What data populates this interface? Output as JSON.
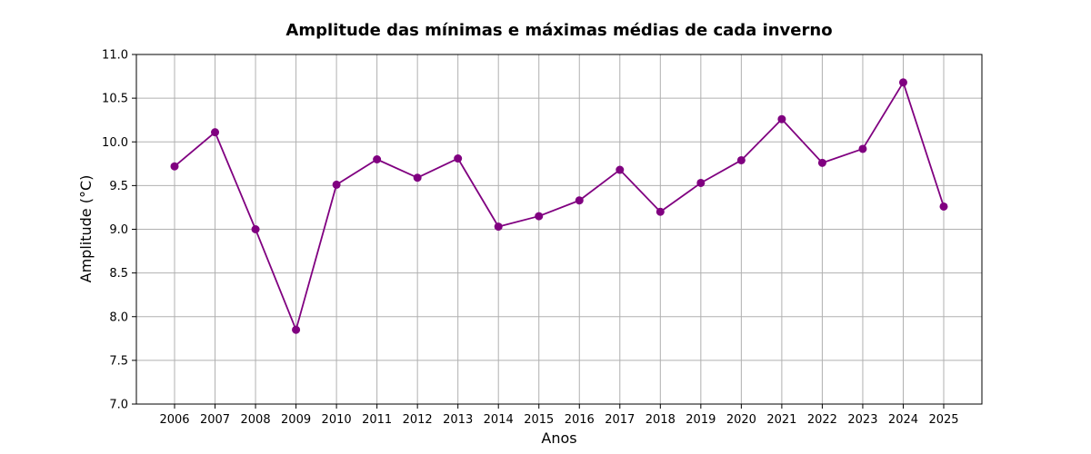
{
  "chart_data": {
    "type": "line",
    "title": "Amplitude das mínimas e máximas médias de cada inverno",
    "xlabel": "Anos",
    "ylabel": "Amplitude (°C)",
    "ylim": [
      7.0,
      11.0
    ],
    "yticks": [
      7.0,
      7.5,
      8.0,
      8.5,
      9.0,
      9.5,
      10.0,
      10.5,
      11.0
    ],
    "ytick_labels": [
      "7.0",
      "7.5",
      "8.0",
      "8.5",
      "9.0",
      "9.5",
      "10.0",
      "10.5",
      "11.0"
    ],
    "grid": true,
    "line_color": "#800080",
    "marker": "circle",
    "series": [
      {
        "x": [
          "2006",
          "2007",
          "2008",
          "2009",
          "2010",
          "2011",
          "2012",
          "2013",
          "2014",
          "2015",
          "2016",
          "2017",
          "2018",
          "2019",
          "2020",
          "2021",
          "2022",
          "2023",
          "2024",
          "2025"
        ],
        "y": [
          9.72,
          10.11,
          9.0,
          7.85,
          9.51,
          9.8,
          9.59,
          9.81,
          9.03,
          9.15,
          9.33,
          9.68,
          9.2,
          9.53,
          9.79,
          10.26,
          9.76,
          9.92,
          10.68,
          9.26
        ]
      }
    ]
  }
}
